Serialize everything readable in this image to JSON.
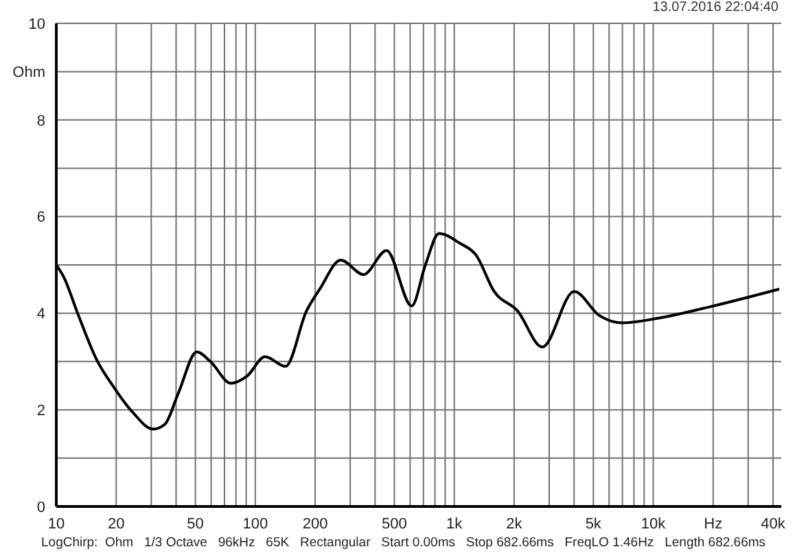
{
  "chart_data": {
    "type": "line",
    "annotations": [
      "13.07.2016 22:04:40",
      "LogChirp:  Ohm   1/3 Octave   96kHz   65K   Rectangular   Start 0.00ms   Stop 682.66ms   FreqLO 1.46Hz   Length 682.66ms"
    ],
    "x": [
      10,
      10.9,
      12.8,
      15.9,
      19.6,
      24.2,
      30.7,
      35.1,
      41.1,
      50.8,
      59.5,
      75.5,
      91,
      112,
      142,
      181,
      211,
      269,
      350,
      457,
      611,
      716,
      838,
      1066,
      1288,
      1587,
      2078,
      2769,
      4003,
      5366,
      6977,
      10669,
      20000,
      43000
    ],
    "series": [
      {
        "color": "#000000",
        "values": [
          5.0,
          4.75,
          4.0,
          3.05,
          2.45,
          1.95,
          1.6,
          1.7,
          2.35,
          3.2,
          3.0,
          2.55,
          2.7,
          3.1,
          2.9,
          4.05,
          4.5,
          5.1,
          4.8,
          5.3,
          4.15,
          5.0,
          5.65,
          5.45,
          5.2,
          4.45,
          4.05,
          3.3,
          4.45,
          3.95,
          3.8,
          3.9,
          4.15,
          4.5
        ]
      }
    ],
    "log": "x",
    "grid": true,
    "legend": false,
    "marker": "none",
    "line_style": "solid",
    "xlim": [
      10,
      44000
    ],
    "xticks": [
      10,
      20,
      {
        "value": 30,
        "label": null
      },
      {
        "value": 40,
        "label": null
      },
      50,
      {
        "value": 60,
        "label": null
      },
      {
        "value": 70,
        "label": null
      },
      {
        "value": 80,
        "label": null
      },
      {
        "value": 90,
        "label": null
      },
      100,
      200,
      {
        "value": 300,
        "label": null
      },
      {
        "value": 400,
        "label": null
      },
      500,
      {
        "value": 600,
        "label": null
      },
      {
        "value": 700,
        "label": null
      },
      {
        "value": 800,
        "label": null
      },
      {
        "value": 900,
        "label": null
      },
      {
        "value": 1000,
        "label": "1k"
      },
      {
        "value": 2000,
        "label": "2k"
      },
      {
        "value": 3000,
        "label": null
      },
      {
        "value": 4000,
        "label": null
      },
      {
        "value": 5000,
        "label": "5k"
      },
      {
        "value": 6000,
        "label": null
      },
      {
        "value": 7000,
        "label": null
      },
      {
        "value": 8000,
        "label": null
      },
      {
        "value": 9000,
        "label": null
      },
      {
        "value": 10000,
        "label": "10k"
      },
      {
        "value": 20000,
        "label": "Hz"
      },
      {
        "value": 30000,
        "label": null
      },
      {
        "value": 40000,
        "label": "40k"
      }
    ],
    "ylim": [
      0,
      10
    ],
    "yticks": [
      0,
      {
        "value": 1,
        "label": null
      },
      2,
      {
        "value": 3,
        "label": null
      },
      4,
      {
        "value": 5,
        "label": null
      },
      6,
      {
        "value": 7,
        "label": null
      },
      8,
      {
        "value": 9,
        "label": "Ohm"
      },
      10
    ]
  }
}
